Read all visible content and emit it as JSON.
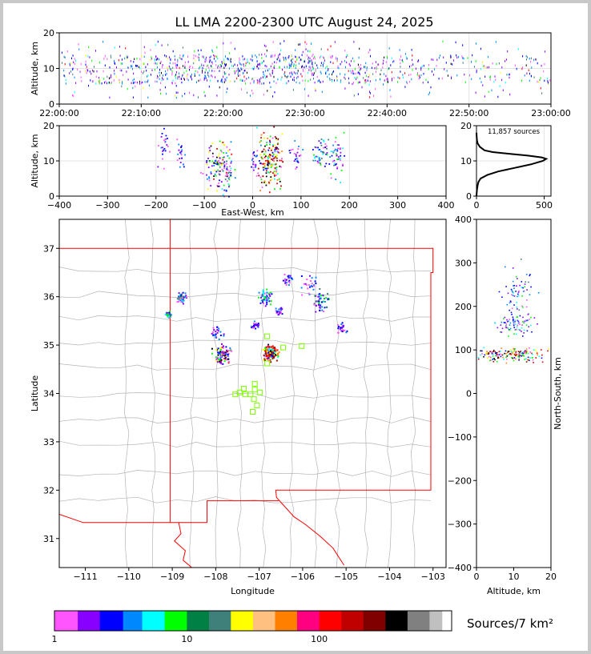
{
  "title": "LL LMA 2200-2300 UTC August 24, 2025",
  "colors": {
    "frame": "#c8c8c8",
    "state_border": "#ff0000",
    "county_line": "#b4b4b4",
    "station_marker": "#7fff00",
    "histogram_curve": "#000000"
  },
  "chart_data": [
    {
      "id": "time-altitude",
      "type": "scatter",
      "ylabel": "Altitude, km",
      "xlabel": "",
      "xticks": [
        "22:00:00",
        "22:10:00",
        "22:20:00",
        "22:30:00",
        "22:40:00",
        "22:50:00",
        "23:00:00"
      ],
      "xlim_minutes": [
        0,
        60
      ],
      "ylim": [
        0,
        20
      ],
      "yticks": [
        0,
        10,
        20
      ],
      "grid": true,
      "source_altitude_band_km": [
        2,
        18
      ],
      "dense_altitude_km": [
        6,
        14
      ]
    },
    {
      "id": "east-west-altitude",
      "type": "scatter",
      "xlabel": "East-West, km",
      "ylabel": "Altitude, km",
      "xlim": [
        -400,
        400
      ],
      "xticks": [
        -400,
        -300,
        -200,
        -100,
        0,
        100,
        200,
        300,
        400
      ],
      "ylim": [
        0,
        20
      ],
      "yticks": [
        0,
        10,
        20
      ],
      "grid": true,
      "clusters": [
        {
          "x": -185,
          "y": 14,
          "spread_x": 6,
          "spread_y": 3,
          "density": "low"
        },
        {
          "x": -150,
          "y": 13,
          "spread_x": 5,
          "spread_y": 2.5,
          "density": "low"
        },
        {
          "x": -75,
          "y": 8,
          "spread_x": 15,
          "spread_y": 4,
          "density": "high"
        },
        {
          "x": -55,
          "y": 6,
          "spread_x": 8,
          "spread_y": 4,
          "density": "medium"
        },
        {
          "x": 5,
          "y": 10,
          "spread_x": 5,
          "spread_y": 2.5,
          "density": "low"
        },
        {
          "x": 35,
          "y": 10,
          "spread_x": 12,
          "spread_y": 4,
          "density": "very-high"
        },
        {
          "x": 90,
          "y": 12,
          "spread_x": 8,
          "spread_y": 2,
          "density": "low"
        },
        {
          "x": 140,
          "y": 12.5,
          "spread_x": 8,
          "spread_y": 2,
          "density": "medium"
        },
        {
          "x": 175,
          "y": 11,
          "spread_x": 8,
          "spread_y": 3,
          "density": "medium"
        }
      ]
    },
    {
      "id": "altitude-histogram",
      "type": "line",
      "annotation": "11,857 sources",
      "xlim": [
        0,
        550
      ],
      "xticks": [
        0,
        500
      ],
      "ylim": [
        0,
        20
      ],
      "yticks": [
        0,
        10,
        20
      ],
      "curve": [
        {
          "alt": 0,
          "count": 0
        },
        {
          "alt": 1,
          "count": 2
        },
        {
          "alt": 2,
          "count": 4
        },
        {
          "alt": 3,
          "count": 8
        },
        {
          "alt": 4,
          "count": 14
        },
        {
          "alt": 5,
          "count": 30
        },
        {
          "alt": 6,
          "count": 80
        },
        {
          "alt": 7,
          "count": 160
        },
        {
          "alt": 8,
          "count": 280
        },
        {
          "alt": 9,
          "count": 400
        },
        {
          "alt": 10,
          "count": 490
        },
        {
          "alt": 10.6,
          "count": 515
        },
        {
          "alt": 11,
          "count": 480
        },
        {
          "alt": 11.5,
          "count": 380
        },
        {
          "alt": 12,
          "count": 250
        },
        {
          "alt": 12.5,
          "count": 120
        },
        {
          "alt": 13,
          "count": 60
        },
        {
          "alt": 14,
          "count": 25
        },
        {
          "alt": 15,
          "count": 8
        },
        {
          "alt": 16,
          "count": 3
        },
        {
          "alt": 17,
          "count": 1
        },
        {
          "alt": 18,
          "count": 0
        }
      ]
    },
    {
      "id": "plan-view-map",
      "type": "scatter",
      "xlabel": "Longitude",
      "ylabel": "Latitude",
      "xlim": [
        -111.6,
        -102.7
      ],
      "ylim": [
        30.4,
        37.6
      ],
      "xticks": [
        -111,
        -110,
        -109,
        -108,
        -107,
        -106,
        -105,
        -104,
        -103
      ],
      "yticks": [
        31,
        32,
        33,
        34,
        35,
        36,
        37
      ],
      "grid": false,
      "clusters": [
        {
          "lon": -108.8,
          "lat": 36.0,
          "spread": 0.05,
          "density": "medium"
        },
        {
          "lon": -109.1,
          "lat": 35.65,
          "spread": 0.03,
          "density": "medium"
        },
        {
          "lon": -108.0,
          "lat": 35.25,
          "spread": 0.07,
          "density": "low"
        },
        {
          "lon": -107.85,
          "lat": 34.8,
          "spread": 0.1,
          "density": "high"
        },
        {
          "lon": -106.75,
          "lat": 34.85,
          "spread": 0.08,
          "density": "very-high"
        },
        {
          "lon": -106.85,
          "lat": 35.98,
          "spread": 0.08,
          "density": "medium"
        },
        {
          "lon": -106.55,
          "lat": 35.7,
          "spread": 0.04,
          "density": "low"
        },
        {
          "lon": -107.1,
          "lat": 35.42,
          "spread": 0.05,
          "density": "low"
        },
        {
          "lon": -106.35,
          "lat": 36.35,
          "spread": 0.05,
          "density": "low"
        },
        {
          "lon": -105.9,
          "lat": 36.25,
          "spread": 0.1,
          "density": "low"
        },
        {
          "lon": -105.6,
          "lat": 35.92,
          "spread": 0.1,
          "density": "medium"
        },
        {
          "lon": -105.1,
          "lat": 35.38,
          "spread": 0.06,
          "density": "low"
        }
      ],
      "stations": [
        {
          "lon": -106.82,
          "lat": 35.18
        },
        {
          "lon": -106.45,
          "lat": 34.95
        },
        {
          "lon": -106.02,
          "lat": 34.98
        },
        {
          "lon": -106.82,
          "lat": 34.62
        },
        {
          "lon": -107.1,
          "lat": 34.2
        },
        {
          "lon": -107.35,
          "lat": 34.1
        },
        {
          "lon": -107.45,
          "lat": 34.02
        },
        {
          "lon": -107.55,
          "lat": 33.98
        },
        {
          "lon": -107.32,
          "lat": 33.98
        },
        {
          "lon": -107.2,
          "lat": 33.98
        },
        {
          "lon": -106.98,
          "lat": 34.02
        },
        {
          "lon": -107.12,
          "lat": 33.88
        },
        {
          "lon": -107.05,
          "lat": 33.75
        },
        {
          "lon": -107.15,
          "lat": 33.62
        },
        {
          "lon": -107.1,
          "lat": 34.08
        }
      ]
    },
    {
      "id": "altitude-north-south",
      "type": "scatter",
      "xlabel": "Altitude, km",
      "ylabel": "North-South, km",
      "xlim": [
        0,
        20
      ],
      "xticks": [
        0,
        10,
        20
      ],
      "ylim": [
        -400,
        400
      ],
      "yticks": [
        -400,
        -300,
        -200,
        -100,
        0,
        100,
        200,
        300,
        400
      ],
      "clusters": [
        {
          "x": 9,
          "y": 90,
          "spread_x": 4.5,
          "spread_y": 8,
          "density": "very-high"
        },
        {
          "x": 11.5,
          "y": 220,
          "spread_x": 2,
          "spread_y": 35,
          "density": "medium"
        },
        {
          "x": 10,
          "y": 155,
          "spread_x": 2.5,
          "spread_y": 10,
          "density": "medium"
        },
        {
          "x": 9.5,
          "y": 170,
          "spread_x": 2,
          "spread_y": 6,
          "density": "low"
        },
        {
          "x": 11,
          "y": 240,
          "spread_x": 3,
          "spread_y": 20,
          "density": "low"
        }
      ]
    }
  ],
  "colorbar": {
    "label": "Sources/7 km²",
    "tick_labels": [
      "1",
      "10",
      "100"
    ],
    "tick_values": [
      1,
      10,
      100
    ],
    "range": [
      1,
      1000
    ],
    "colors": [
      "#ff55ff",
      "#8800ff",
      "#0000ff",
      "#0088ff",
      "#00ffff",
      "#00ff00",
      "#008044",
      "#40807a",
      "#ffff00",
      "#ffc080",
      "#ff8000",
      "#ff0080",
      "#ff0000",
      "#c00000",
      "#800000",
      "#000000",
      "#808080",
      "#c0c0c0",
      "#ffffff"
    ]
  }
}
